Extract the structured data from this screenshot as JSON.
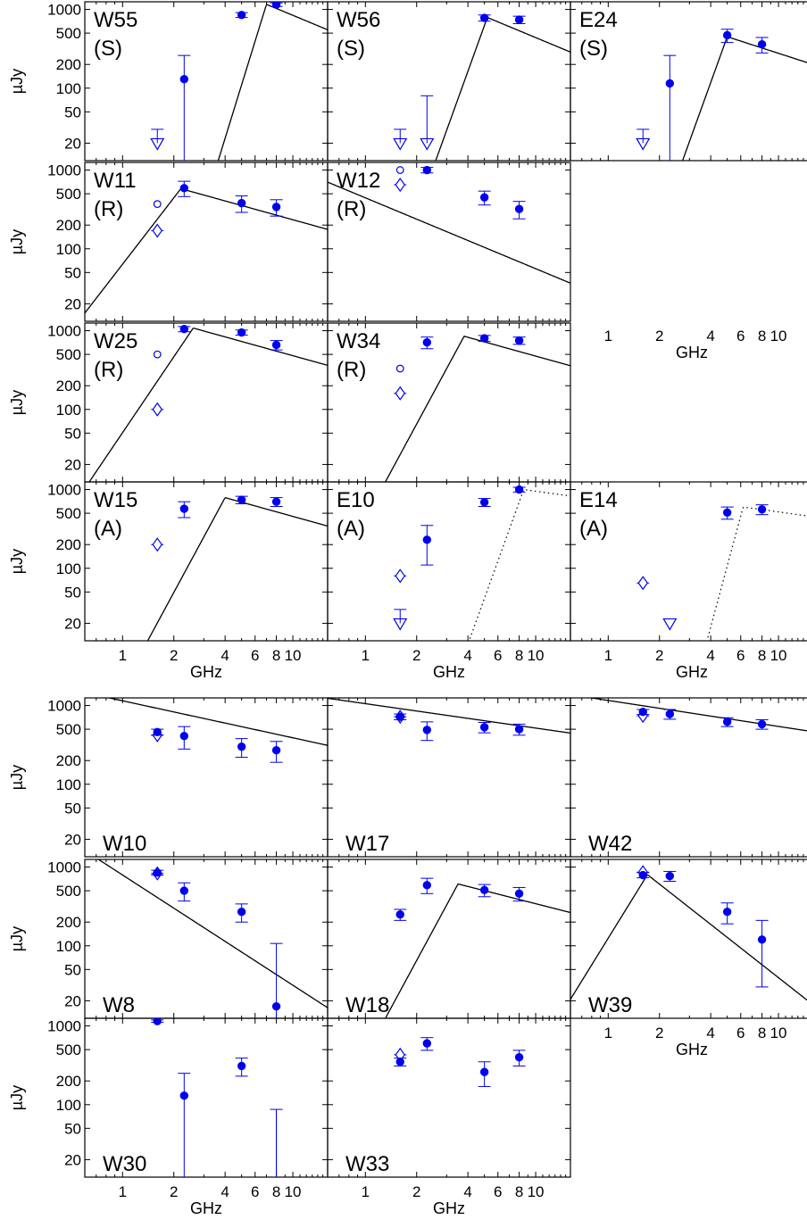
{
  "chart_data": [
    {
      "type": "scatter",
      "title": "",
      "xlabel": "GHz",
      "ylabel": "µJy",
      "x_scale": "log",
      "y_scale": "log",
      "xlim": [
        0.6,
        16
      ],
      "ylim": [
        12,
        1250
      ],
      "x_ticks": [
        1,
        2,
        4,
        6,
        8,
        10
      ],
      "x_tick_labels": [
        "1",
        "2",
        "4",
        "6",
        "8",
        "10"
      ],
      "y_ticks": [
        20,
        50,
        100,
        200,
        500,
        1000
      ],
      "y_tick_labels": [
        "20",
        "50",
        "100",
        "200",
        "500",
        "1000"
      ],
      "legend_position": "none",
      "grid": false,
      "marker_color": "#0000ee",
      "curve_color": "#000000",
      "panels": [
        {
          "name": "W55",
          "label": "W55",
          "class": "(S)",
          "row": 0,
          "col": 0,
          "points": [
            [
              2.3,
              130,
              0
            ],
            [
              5.0,
              850,
              60
            ],
            [
              8.0,
              1150,
              60
            ]
          ],
          "upper_limits": [
            [
              1.6,
              20,
              10
            ]
          ],
          "open_circles": [],
          "diamonds": [],
          "curve": {
            "style": "solid",
            "peak_x": 7.0,
            "peak_y": 1160,
            "low_slope": 7.0,
            "high_slope": -0.9
          }
        },
        {
          "name": "W56",
          "label": "W56",
          "class": "(S)",
          "row": 0,
          "col": 1,
          "points": [
            [
              5.0,
              780,
              70
            ],
            [
              8.0,
              740,
              80
            ]
          ],
          "upper_limits": [
            [
              1.6,
              20,
              10
            ],
            [
              2.3,
              20,
              60
            ]
          ],
          "open_circles": [],
          "diamonds": [],
          "curve": {
            "style": "solid",
            "peak_x": 5.2,
            "peak_y": 790,
            "low_slope": 6.0,
            "high_slope": -0.9
          }
        },
        {
          "name": "E24",
          "label": "E24",
          "class": "(S)",
          "row": 0,
          "col": 2,
          "points": [
            [
              2.3,
              115,
              0
            ],
            [
              5.0,
              470,
              90
            ],
            [
              8.0,
              360,
              80
            ]
          ],
          "upper_limits": [
            [
              1.6,
              20,
              10
            ]
          ],
          "open_circles": [],
          "diamonds": [],
          "curve": {
            "style": "solid",
            "peak_x": 5.0,
            "peak_y": 450,
            "low_slope": 6.0,
            "high_slope": -0.7
          }
        },
        {
          "name": "W11",
          "label": "W11",
          "class": "(R)",
          "row": 1,
          "col": 0,
          "points": [
            [
              2.3,
              590,
              130
            ],
            [
              5.0,
              380,
              90
            ],
            [
              8.0,
              340,
              80
            ]
          ],
          "upper_limits": [],
          "open_circles": [
            [
              1.6,
              370
            ]
          ],
          "diamonds": [
            [
              1.6,
              170
            ]
          ],
          "curve": {
            "style": "solid",
            "peak_x": 2.2,
            "peak_y": 580,
            "low_slope": 2.8,
            "high_slope": -0.6
          }
        },
        {
          "name": "W12",
          "label": "W12",
          "class": "(R)",
          "row": 1,
          "col": 1,
          "points": [
            [
              2.3,
              1000,
              80
            ],
            [
              5.0,
              450,
              90
            ],
            [
              8.0,
              320,
              80
            ]
          ],
          "upper_limits": [],
          "open_circles": [
            [
              1.6,
              1000
            ]
          ],
          "diamonds": [
            [
              1.6,
              650
            ]
          ],
          "curve": {
            "style": "solid",
            "peak_x": 0.01,
            "peak_y": 28000,
            "low_slope": 0.0,
            "high_slope": -0.9
          }
        },
        {
          "name": "W25",
          "label": "W25",
          "class": "(R)",
          "row": 2,
          "col": 0,
          "points": [
            [
              2.3,
              1050,
              80
            ],
            [
              5.0,
              950,
              70
            ],
            [
              8.0,
              660,
              90
            ]
          ],
          "upper_limits": [],
          "open_circles": [
            [
              1.6,
              500
            ]
          ],
          "diamonds": [
            [
              1.6,
              100
            ]
          ],
          "curve": {
            "style": "solid",
            "peak_x": 2.6,
            "peak_y": 1080,
            "low_slope": 3.2,
            "high_slope": -0.6
          }
        },
        {
          "name": "W34",
          "label": "W34",
          "class": "(R)",
          "row": 2,
          "col": 1,
          "points": [
            [
              2.3,
              710,
              120
            ],
            [
              5.0,
              800,
              70
            ],
            [
              8.0,
              750,
              80
            ]
          ],
          "upper_limits": [],
          "open_circles": [
            [
              1.6,
              330
            ]
          ],
          "diamonds": [
            [
              1.6,
              160
            ]
          ],
          "curve": {
            "style": "solid",
            "peak_x": 3.8,
            "peak_y": 850,
            "low_slope": 4.0,
            "high_slope": -0.6
          }
        },
        {
          "name": "W15",
          "label": "W15",
          "class": "(A)",
          "row": 3,
          "col": 0,
          "points": [
            [
              2.3,
              570,
              130
            ],
            [
              5.0,
              740,
              80
            ],
            [
              8.0,
              700,
              90
            ]
          ],
          "upper_limits": [],
          "open_circles": [
            [
              1.6,
              200
            ]
          ],
          "diamonds": [
            [
              1.6,
              200
            ]
          ],
          "curve": {
            "style": "solid",
            "peak_x": 4.0,
            "peak_y": 790,
            "low_slope": 4.0,
            "high_slope": -0.6
          }
        },
        {
          "name": "E10",
          "label": "E10",
          "class": "(A)",
          "row": 3,
          "col": 1,
          "points": [
            [
              2.3,
              230,
              120
            ],
            [
              5.0,
              690,
              80
            ],
            [
              8.0,
              1000,
              70
            ]
          ],
          "upper_limits": [
            [
              1.6,
              20,
              10
            ]
          ],
          "open_circles": [],
          "diamonds": [
            [
              1.6,
              80
            ]
          ],
          "curve": {
            "style": "dotted",
            "peak_x": 8.5,
            "peak_y": 1000,
            "low_slope": 6.0,
            "high_slope": -0.3
          }
        },
        {
          "name": "E14",
          "label": "E14",
          "class": "(A)",
          "row": 3,
          "col": 2,
          "points": [
            [
              5.0,
              510,
              90
            ],
            [
              8.0,
              560,
              80
            ]
          ],
          "upper_limits": [
            [
              2.3,
              20,
              0
            ]
          ],
          "open_circles": [],
          "diamonds": [
            [
              1.6,
              65
            ]
          ],
          "curve": {
            "style": "dotted",
            "peak_x": 6.2,
            "peak_y": 600,
            "low_slope": 8.0,
            "high_slope": -0.3
          }
        },
        {
          "name": "W10",
          "label": "W10",
          "class": "",
          "row": 4,
          "col": 0,
          "points": [
            [
              1.6,
              460,
              40
            ],
            [
              2.3,
              410,
              130
            ],
            [
              5.0,
              300,
              80
            ],
            [
              8.0,
              270,
              80
            ]
          ],
          "upper_limits": [],
          "open_circles": [],
          "diamonds": [
            [
              1.6,
              420
            ]
          ],
          "curve": {
            "style": "solid",
            "peak_x": 0.01,
            "peak_y": 10000,
            "low_slope": 0.0,
            "high_slope": -0.47
          }
        },
        {
          "name": "W17",
          "label": "W17",
          "class": "",
          "row": 4,
          "col": 1,
          "points": [
            [
              1.6,
              720,
              60
            ],
            [
              2.3,
              490,
              130
            ],
            [
              5.0,
              530,
              80
            ],
            [
              8.0,
              500,
              80
            ]
          ],
          "upper_limits": [],
          "open_circles": [],
          "diamonds": [
            [
              1.6,
              720
            ]
          ],
          "curve": {
            "style": "solid",
            "peak_x": 0.01,
            "peak_y": 4400,
            "low_slope": 0.0,
            "high_slope": -0.31
          }
        },
        {
          "name": "W42",
          "label": "W42",
          "class": "",
          "row": 4,
          "col": 2,
          "points": [
            [
              1.6,
              830,
              60
            ],
            [
              2.3,
              780,
              110
            ],
            [
              5.0,
              620,
              80
            ],
            [
              8.0,
              580,
              80
            ]
          ],
          "upper_limits": [],
          "open_circles": [],
          "diamonds": [
            [
              1.6,
              740
            ]
          ],
          "curve": {
            "style": "solid",
            "peak_x": 0.01,
            "peak_y": 5300,
            "low_slope": 0.0,
            "high_slope": -0.33
          }
        },
        {
          "name": "W8",
          "label": "W8",
          "class": "",
          "row": 5,
          "col": 0,
          "points": [
            [
              1.6,
              850,
              60
            ],
            [
              2.3,
              500,
              130
            ],
            [
              5.0,
              270,
              70
            ],
            [
              8.0,
              17,
              90
            ]
          ],
          "upper_limits": [],
          "open_circles": [],
          "diamonds": [
            [
              1.6,
              830
            ]
          ],
          "curve": {
            "style": "solid",
            "peak_x": 0.01,
            "peak_y": 500000,
            "low_slope": 0.0,
            "high_slope": -1.4
          }
        },
        {
          "name": "W18",
          "label": "W18",
          "class": "",
          "row": 5,
          "col": 1,
          "points": [
            [
              1.6,
              250,
              40
            ],
            [
              2.3,
              590,
              130
            ],
            [
              5.0,
              510,
              90
            ],
            [
              8.0,
              460,
              90
            ]
          ],
          "upper_limits": [],
          "open_circles": [],
          "diamonds": [],
          "curve": {
            "style": "solid",
            "peak_x": 3.5,
            "peak_y": 610,
            "low_slope": 4.0,
            "high_slope": -0.55
          }
        },
        {
          "name": "W39",
          "label": "W39",
          "class": "",
          "row": 5,
          "col": 2,
          "points": [
            [
              1.6,
              790,
              60
            ],
            [
              2.3,
              770,
              110
            ],
            [
              5.0,
              270,
              80
            ],
            [
              8.0,
              120,
              90
            ]
          ],
          "upper_limits": [],
          "open_circles": [],
          "diamonds": [
            [
              1.6,
              860
            ]
          ],
          "curve": {
            "style": "solid",
            "peak_x": 1.7,
            "peak_y": 800,
            "low_slope": 3.5,
            "high_slope": -1.7
          }
        },
        {
          "name": "W30",
          "label": "W30",
          "class": "",
          "row": 6,
          "col": 0,
          "points": [
            [
              1.6,
              1150,
              40
            ],
            [
              2.3,
              130,
              120
            ],
            [
              5.0,
              310,
              80
            ]
          ],
          "upper_limits": [
            [
              8.0,
              12,
              75
            ]
          ],
          "open_circles": [],
          "diamonds": [],
          "curve": null
        },
        {
          "name": "W33",
          "label": "W33",
          "class": "",
          "row": 6,
          "col": 1,
          "points": [
            [
              1.6,
              350,
              40
            ],
            [
              2.3,
              600,
              110
            ],
            [
              5.0,
              260,
              90
            ],
            [
              8.0,
              400,
              90
            ]
          ],
          "upper_limits": [],
          "open_circles": [],
          "diamonds": [
            [
              1.6,
              430
            ]
          ],
          "curve": null
        }
      ],
      "x_axis_rows": [
        [
          3,
          0
        ],
        [
          3,
          1
        ],
        [
          3,
          2
        ],
        [
          6,
          0
        ],
        [
          6,
          1
        ],
        [
          1,
          2
        ],
        [
          5,
          2
        ]
      ]
    }
  ]
}
